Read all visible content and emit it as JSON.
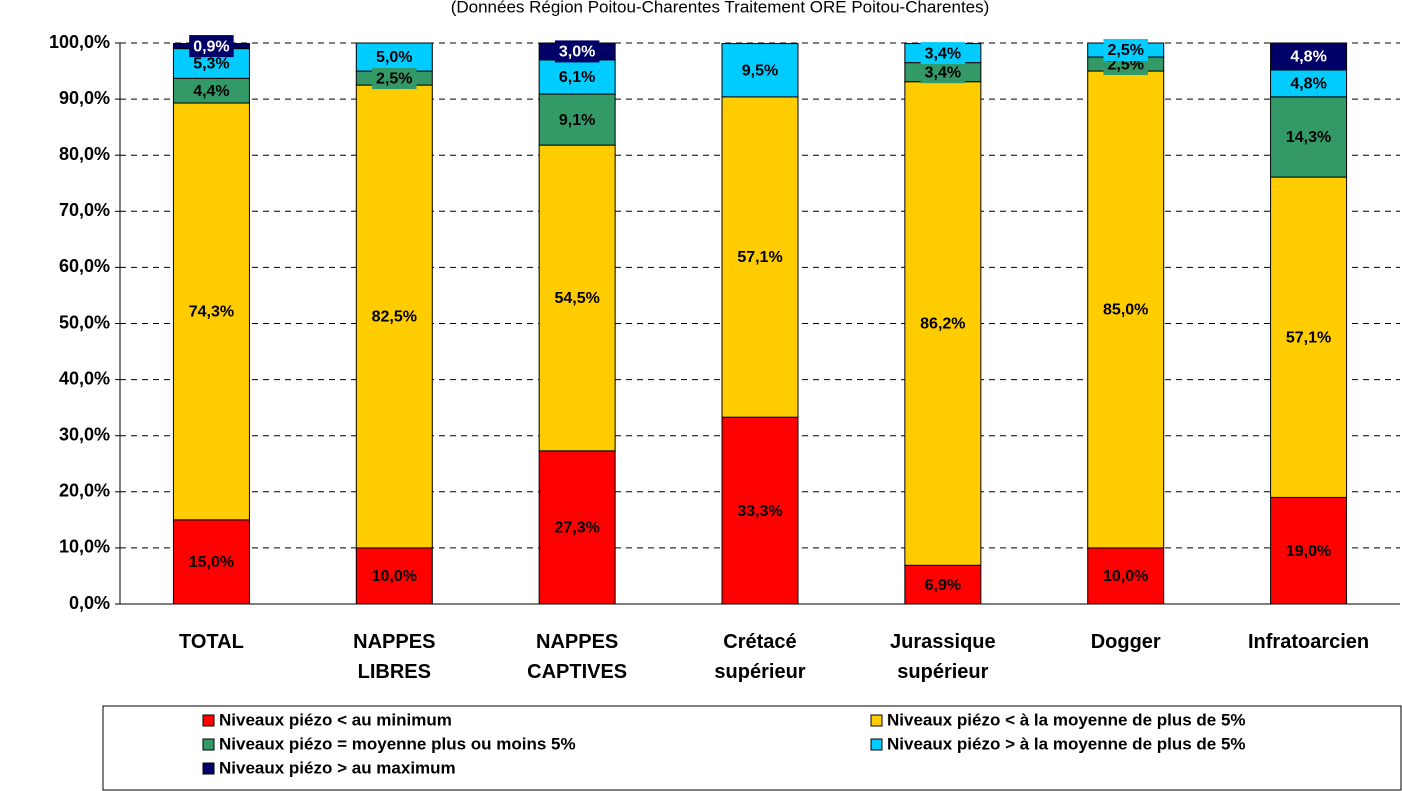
{
  "chart_data": {
    "type": "stacked_bar",
    "subtitle": "(Données Région Poitou-Charentes Traitement ORE Poitou-Charentes)",
    "categories": [
      "TOTAL",
      "NAPPES LIBRES",
      "NAPPES CAPTIVES",
      "Crétacé supérieur",
      "Jurassique supérieur",
      "Dogger",
      "Infratoarcien"
    ],
    "series": [
      {
        "name": "Niveaux piézo < au minimum",
        "color": "#ff0000",
        "text_color": "#000000",
        "values": [
          15.0,
          10.0,
          27.3,
          33.3,
          6.9,
          10.0,
          19.0
        ],
        "value_labels": [
          "15,0%",
          "10,0%",
          "27,3%",
          "33,3%",
          "6,9%",
          "10,0%",
          "19,0%"
        ]
      },
      {
        "name": "Niveaux piézo < à la moyenne de plus de 5%",
        "color": "#ffcc00",
        "text_color": "#000000",
        "values": [
          74.3,
          82.5,
          54.5,
          57.1,
          86.2,
          85.0,
          57.1
        ],
        "value_labels": [
          "74,3%",
          "82,5%",
          "54,5%",
          "57,1%",
          "86,2%",
          "85,0%",
          "57,1%"
        ]
      },
      {
        "name": "Niveaux piézo = moyenne plus ou moins 5%",
        "color": "#339966",
        "text_color": "#000000",
        "values": [
          4.4,
          2.5,
          9.1,
          null,
          3.4,
          2.5,
          14.3
        ],
        "value_labels": [
          "4,4%",
          "2,5%",
          "9,1%",
          null,
          "3,4%",
          "2,5%",
          "14,3%"
        ]
      },
      {
        "name": "Niveaux piézo > à la moyenne de plus de 5%",
        "color": "#00ccff",
        "text_color": "#000000",
        "values": [
          5.3,
          5.0,
          6.1,
          9.5,
          3.4,
          2.5,
          4.8
        ],
        "value_labels": [
          "5,3%",
          "5,0%",
          "6,1%",
          "9,5%",
          "3,4%",
          "2,5%",
          "4,8%"
        ]
      },
      {
        "name": "Niveaux piézo > au maximum",
        "color": "#000066",
        "text_color": "#ffffff",
        "values": [
          0.9,
          null,
          3.0,
          null,
          null,
          null,
          4.8
        ],
        "value_labels": [
          "0,9%",
          null,
          "3,0%",
          null,
          null,
          null,
          "4,8%"
        ]
      }
    ],
    "ylim": [
      0,
      100
    ],
    "yticks": [
      {
        "value": 0,
        "label": "0,0%"
      },
      {
        "value": 10,
        "label": "10,0%"
      },
      {
        "value": 20,
        "label": "20,0%"
      },
      {
        "value": 30,
        "label": "30,0%"
      },
      {
        "value": 40,
        "label": "40,0%"
      },
      {
        "value": 50,
        "label": "50,0%"
      },
      {
        "value": 60,
        "label": "60,0%"
      },
      {
        "value": 70,
        "label": "70,0%"
      },
      {
        "value": 80,
        "label": "80,0%"
      },
      {
        "value": 90,
        "label": "90,0%"
      },
      {
        "value": 100,
        "label": "100,0%"
      }
    ],
    "grid": true,
    "legend": "bottom"
  }
}
